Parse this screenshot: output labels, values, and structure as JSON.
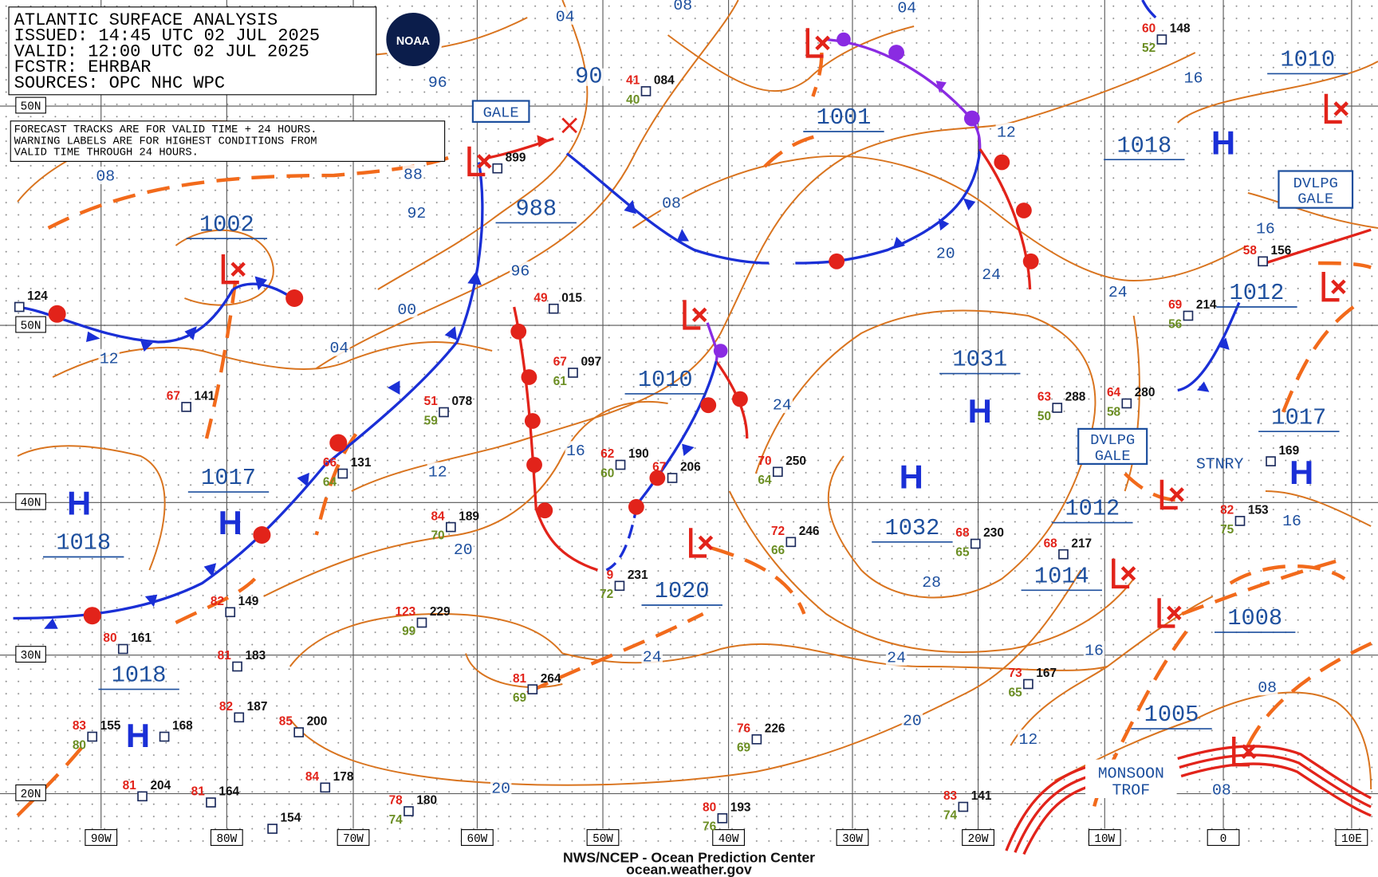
{
  "header": {
    "lines": [
      "ATLANTIC SURFACE ANALYSIS",
      "ISSUED: 14:45 UTC 02 JUL 2025",
      "VALID:  12:00 UTC 02 JUL 2025",
      "FCSTR:  EHRBAR",
      "SOURCES: OPC NHC WPC"
    ]
  },
  "logo": "NOAA",
  "note": [
    "FORECAST TRACKS ARE FOR VALID TIME + 24 HOURS.",
    "WARNING LABELS ARE FOR HIGHEST CONDITIONS FROM",
    "VALID TIME THROUGH 24 HOURS."
  ],
  "latitude_labels": [
    "50N",
    "50N",
    "40N",
    "30N",
    "20N"
  ],
  "longitude_labels": [
    "90W",
    "80W",
    "70W",
    "60W",
    "50W",
    "40W",
    "30W",
    "20W",
    "10W",
    "0",
    "10E"
  ],
  "pressure_centers": [
    "1002",
    "988",
    "1001",
    "1018",
    "1010",
    "1012",
    "1031",
    "1010",
    "1017",
    "1018",
    "1032",
    "1012",
    "1014",
    "1017",
    "1020",
    "1008",
    "1018",
    "1005"
  ],
  "isobar_labels": [
    "04",
    "08",
    "04",
    "90",
    "96",
    "88",
    "92",
    "08",
    "96",
    "00",
    "04",
    "12",
    "08",
    "12",
    "16",
    "20",
    "24",
    "24",
    "16",
    "24",
    "16",
    "12",
    "20",
    "28",
    "24",
    "24",
    "16",
    "20",
    "12",
    "08",
    "08",
    "20",
    "16"
  ],
  "highs": [
    "H",
    "H",
    "H",
    "H",
    "H",
    "H",
    "H"
  ],
  "warnings": [
    "GALE",
    "DVLPG\nGALE",
    "DVLPG\nGALE"
  ],
  "front_labels": [
    "STNRY",
    "MONSOON\nTROF"
  ],
  "stations": [
    {
      "pressure": "148",
      "temperature": "60",
      "dewpoint": "52"
    },
    {
      "pressure": "084",
      "temperature": "41",
      "dewpoint": "40"
    },
    {
      "pressure": "899"
    },
    {
      "pressure": "015",
      "temperature": "49"
    },
    {
      "pressure": "097",
      "temperature": "67",
      "dewpoint": "61"
    },
    {
      "pressure": "078",
      "temperature": "51",
      "dewpoint": "59"
    },
    {
      "pressure": "131",
      "temperature": "66",
      "dewpoint": "64"
    },
    {
      "pressure": "149",
      "temperature": "82"
    },
    {
      "pressure": "161",
      "temperature": "80"
    },
    {
      "pressure": "183",
      "temperature": "81"
    },
    {
      "pressure": "187",
      "temperature": "82"
    },
    {
      "pressure": "200",
      "temperature": "85"
    },
    {
      "pressure": "155",
      "temperature": "83",
      "dewpoint": "80"
    },
    {
      "pressure": "204",
      "temperature": "81"
    },
    {
      "pressure": "164",
      "temperature": "81"
    },
    {
      "pressure": "178",
      "temperature": "84"
    },
    {
      "pressure": "180",
      "temperature": "78",
      "dewpoint": "74"
    },
    {
      "pressure": "154"
    },
    {
      "pressure": "189",
      "temperature": "84",
      "dewpoint": "70"
    },
    {
      "pressure": "229",
      "temperature": "123",
      "dewpoint": "99"
    },
    {
      "pressure": "190",
      "temperature": "62",
      "dewpoint": "60"
    },
    {
      "pressure": "206",
      "temperature": "67"
    },
    {
      "pressure": "231",
      "temperature": "9",
      "dewpoint": "72"
    },
    {
      "pressure": "264",
      "temperature": "81",
      "dewpoint": "69"
    },
    {
      "pressure": "250",
      "temperature": "70",
      "dewpoint": "64"
    },
    {
      "pressure": "246",
      "temperature": "72",
      "dewpoint": "66"
    },
    {
      "pressure": "230",
      "temperature": "68",
      "dewpoint": "65"
    },
    {
      "pressure": "288",
      "temperature": "63",
      "dewpoint": "50"
    },
    {
      "pressure": "280",
      "temperature": "64",
      "dewpoint": "58"
    },
    {
      "pressure": "156",
      "temperature": "58"
    },
    {
      "pressure": "214",
      "temperature": "69",
      "dewpoint": "56"
    },
    {
      "pressure": "169"
    },
    {
      "pressure": "153",
      "temperature": "82",
      "dewpoint": "75"
    },
    {
      "pressure": "217",
      "temperature": "68"
    },
    {
      "pressure": "167",
      "temperature": "73",
      "dewpoint": "65"
    },
    {
      "pressure": "141",
      "temperature": "83",
      "dewpoint": "74"
    },
    {
      "pressure": "226",
      "temperature": "76",
      "dewpoint": "69"
    },
    {
      "pressure": "193",
      "temperature": "80",
      "dewpoint": "76"
    },
    {
      "pressure": "124"
    },
    {
      "pressure": "141",
      "temperature": "67"
    },
    {
      "pressure": "168"
    }
  ],
  "footer": [
    "NWS/NCEP - Ocean Prediction Center",
    "ocean.weather.gov"
  ]
}
